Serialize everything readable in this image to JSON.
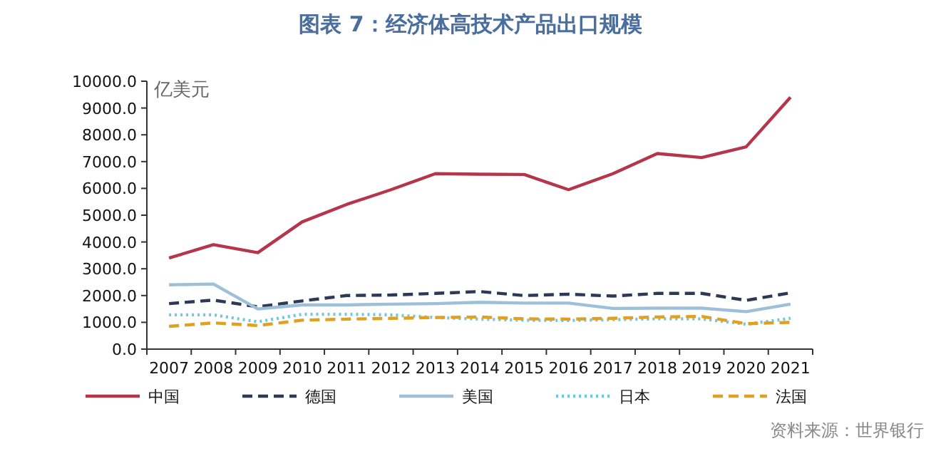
{
  "chart_data": {
    "type": "line",
    "title": "图表 7：经济体高技术产品出口规模",
    "ylabel": "亿美元",
    "categories": [
      "2007",
      "2008",
      "2009",
      "2010",
      "2011",
      "2012",
      "2013",
      "2014",
      "2015",
      "2016",
      "2017",
      "2018",
      "2019",
      "2020",
      "2021"
    ],
    "series": [
      {
        "name": "中国",
        "color": "#b5364b",
        "line_style": "solid",
        "values": [
          3400,
          3900,
          3600,
          4750,
          5400,
          5950,
          6550,
          6530,
          6520,
          5950,
          6550,
          7300,
          7150,
          7550,
          9400
        ]
      },
      {
        "name": "德国",
        "color": "#2e3a55",
        "line_style": "dashed",
        "values": [
          1700,
          1830,
          1580,
          1800,
          2000,
          2020,
          2080,
          2150,
          2000,
          2050,
          1980,
          2080,
          2080,
          1820,
          2100
        ]
      },
      {
        "name": "美国",
        "color": "#9dbfd8",
        "line_style": "solid",
        "values": [
          2400,
          2430,
          1500,
          1650,
          1650,
          1680,
          1700,
          1750,
          1720,
          1720,
          1520,
          1530,
          1530,
          1400,
          1680
        ]
      },
      {
        "name": "日本",
        "color": "#6fc8e0",
        "line_style": "dotted",
        "values": [
          1280,
          1280,
          1020,
          1300,
          1300,
          1280,
          1180,
          1120,
          1080,
          1070,
          1100,
          1130,
          1130,
          930,
          1150
        ]
      },
      {
        "name": "法国",
        "color": "#e0a020",
        "line_style": "dashed",
        "values": [
          850,
          980,
          880,
          1080,
          1120,
          1150,
          1180,
          1200,
          1130,
          1120,
          1150,
          1200,
          1220,
          950,
          1000
        ]
      }
    ],
    "ylim": [
      0,
      10000
    ],
    "yticks": [
      {
        "value": 0,
        "label": "0.0"
      },
      {
        "value": 1000,
        "label": "1000.0"
      },
      {
        "value": 2000,
        "label": "2000.0"
      },
      {
        "value": 3000,
        "label": "3000.0"
      },
      {
        "value": 4000,
        "label": "4000.0"
      },
      {
        "value": 5000,
        "label": "5000.0"
      },
      {
        "value": 6000,
        "label": "6000.0"
      },
      {
        "value": 7000,
        "label": "7000.0"
      },
      {
        "value": 8000,
        "label": "8000.0"
      },
      {
        "value": 9000,
        "label": "9000.0"
      },
      {
        "value": 10000,
        "label": "10000.0"
      }
    ],
    "grid": false,
    "legend": "bottom",
    "marker": "none",
    "annotations": [
      "资料来源：世界银行"
    ]
  }
}
